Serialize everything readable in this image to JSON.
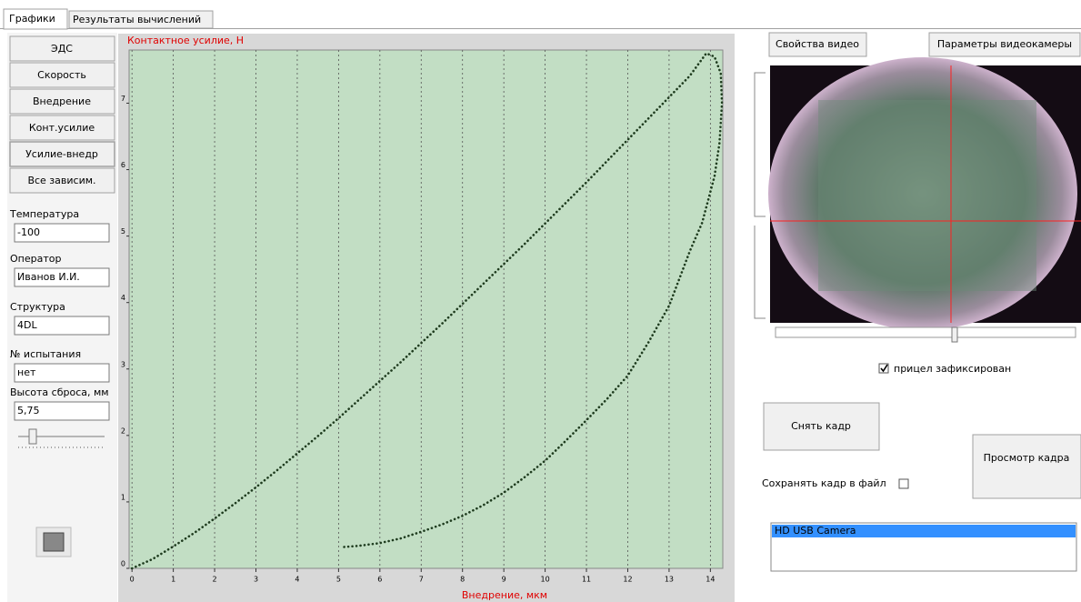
{
  "tabs": [
    "Графики",
    "Результаты вычислений"
  ],
  "left_buttons": [
    "ЭДС",
    "Скорость",
    "Внедрение",
    "Конт.усилие",
    "Усилие-внедр",
    "Все зависим."
  ],
  "fields": [
    {
      "label": "Температура",
      "value": "-100"
    },
    {
      "label": "Оператор",
      "value": "Иванов И.И."
    },
    {
      "label": "Структура",
      "value": "4DL"
    },
    {
      "label": "№ испытания",
      "value": "нет"
    },
    {
      "label": "Высота сброса, мм",
      "value": "5,75"
    }
  ],
  "chart_data": {
    "type": "line",
    "line_style": "dotted",
    "y_label": "Контактное усилие, Н",
    "x_label": "Внедрение, мкм",
    "x": [
      0,
      0.5,
      1,
      1.5,
      2,
      2.5,
      3,
      3.5,
      4,
      4.5,
      5,
      5.5,
      6,
      6.5,
      7,
      7.5,
      8,
      8.5,
      9,
      9.5,
      10,
      10.5,
      11,
      11.5,
      12,
      12.5,
      13,
      13.5,
      13.9,
      14.1,
      14.25,
      14.28,
      14.22,
      14.1,
      13.8,
      13.5,
      13,
      12.5,
      12,
      11.5,
      11,
      10.5,
      10,
      9.5,
      9,
      8.5,
      8,
      7.5,
      7,
      6.5,
      6,
      5.5,
      5.1
    ],
    "series": [
      {
        "color": "#1e3b1e",
        "values": [
          0,
          0.14,
          0.33,
          0.53,
          0.75,
          0.98,
          1.22,
          1.47,
          1.73,
          1.99,
          2.26,
          2.54,
          2.82,
          3.1,
          3.39,
          3.68,
          3.98,
          4.28,
          4.58,
          4.88,
          5.19,
          5.5,
          5.81,
          6.13,
          6.45,
          6.77,
          7.09,
          7.41,
          7.75,
          7.7,
          7.45,
          7.0,
          6.4,
          5.9,
          5.2,
          4.77,
          3.95,
          3.4,
          2.9,
          2.55,
          2.23,
          1.92,
          1.62,
          1.37,
          1.14,
          0.95,
          0.79,
          0.66,
          0.55,
          0.45,
          0.38,
          0.34,
          0.32
        ]
      }
    ],
    "xlim": [
      -0.07,
      14.3
    ],
    "ylim": [
      0,
      7.8
    ],
    "xticks": [
      0,
      1,
      2,
      3,
      4,
      5,
      6,
      7,
      8,
      9,
      10,
      11,
      12,
      13,
      14
    ],
    "yticks": [
      0,
      1,
      2,
      3,
      4,
      5,
      6,
      7
    ],
    "grid": "x"
  },
  "video_buttons": [
    "Свойства видео",
    "Параметры видеокамеры"
  ],
  "crosshair": {
    "label": "прицел зафиксирован",
    "checked": true
  },
  "capture_button": "Снять кадр",
  "view_button": "Просмотр кадра",
  "save_to_file": {
    "label": "Сохранять кадр в файл",
    "checked": false
  },
  "camera_list": [
    "HD USB Camera"
  ]
}
